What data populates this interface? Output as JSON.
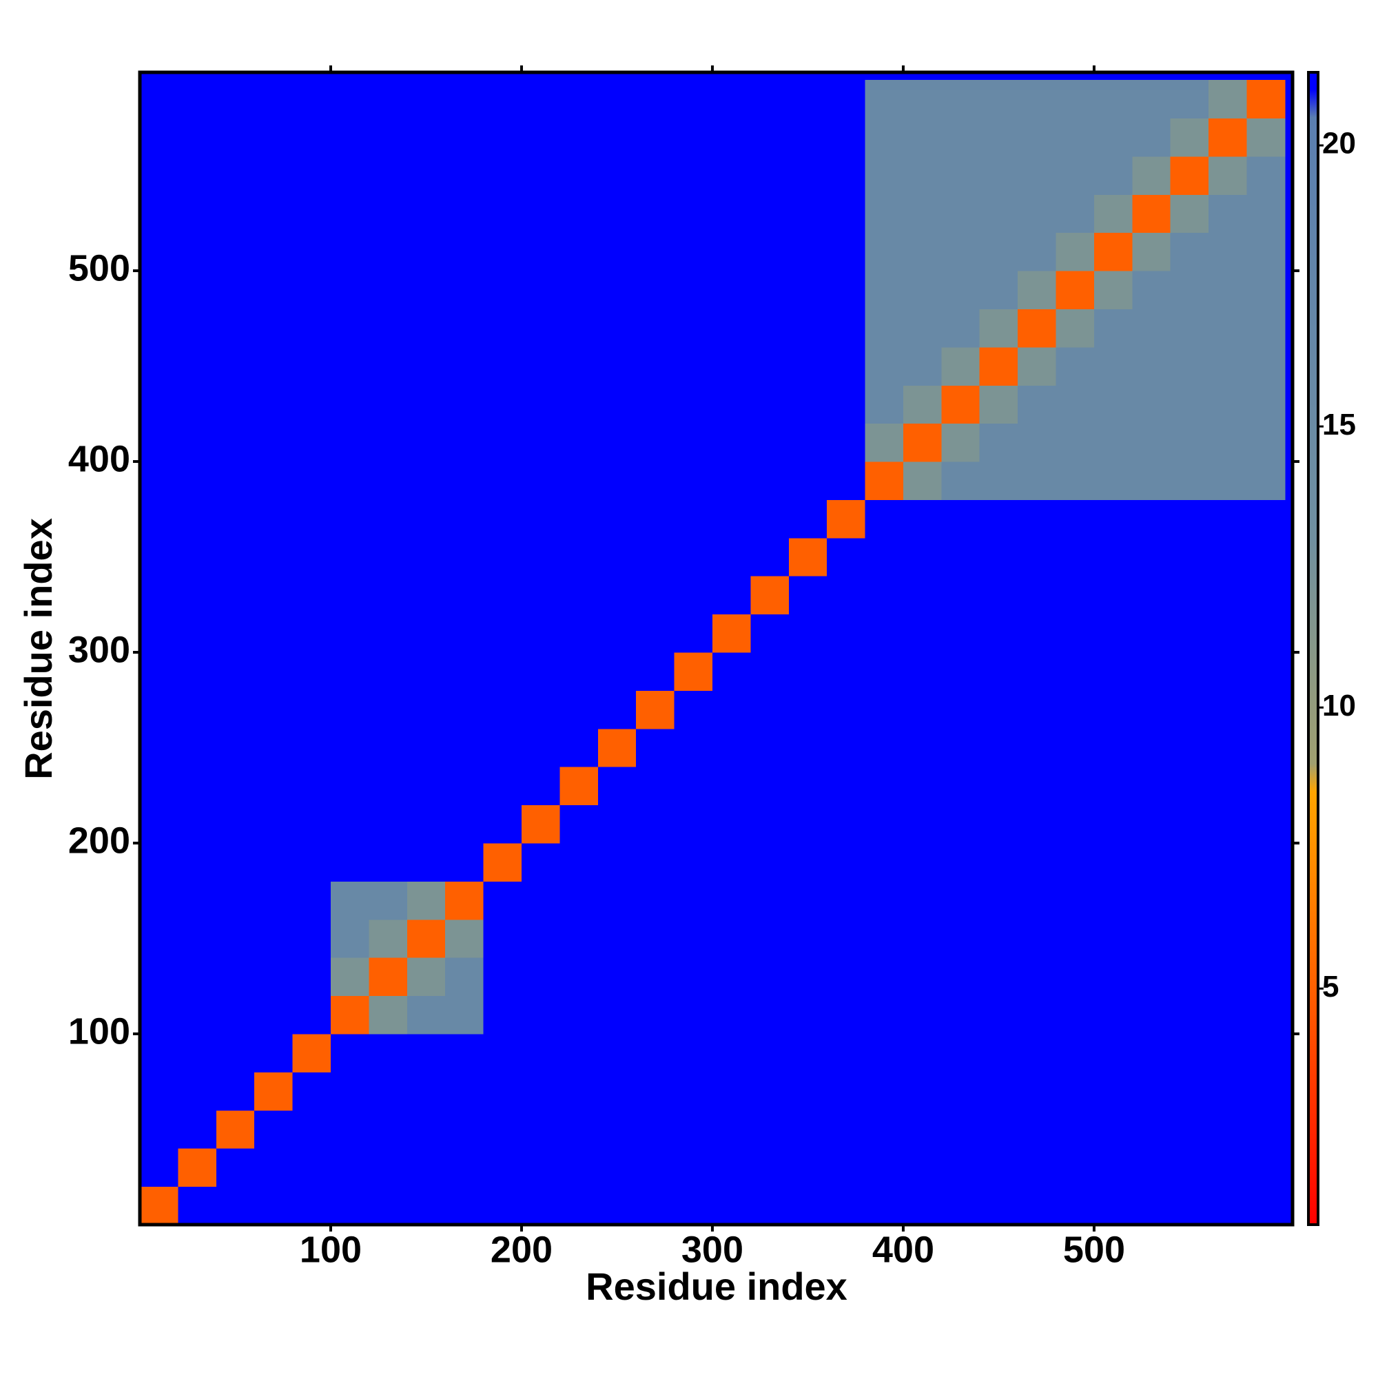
{
  "chart_data": {
    "type": "heatmap",
    "x_label": "Residue index",
    "y_label": "Residue index",
    "bins": [
      0,
      20,
      40,
      60,
      80,
      100,
      120,
      140,
      160,
      180,
      200,
      220,
      240,
      260,
      280,
      300,
      320,
      340,
      360,
      380,
      400,
      420,
      440,
      460,
      480,
      500,
      520,
      540,
      560,
      580,
      600
    ],
    "values": [
      [
        5,
        21,
        21,
        21,
        21,
        21,
        21,
        21,
        21,
        21,
        21,
        21,
        21,
        21,
        21,
        21,
        21,
        21,
        21,
        21,
        21,
        21,
        21,
        21,
        21,
        21,
        21,
        21,
        21,
        21
      ],
      [
        21,
        5,
        21,
        21,
        21,
        21,
        21,
        21,
        21,
        21,
        21,
        21,
        21,
        21,
        21,
        21,
        21,
        21,
        21,
        21,
        21,
        21,
        21,
        21,
        21,
        21,
        21,
        21,
        21,
        21
      ],
      [
        21,
        21,
        5,
        21,
        21,
        21,
        21,
        21,
        21,
        21,
        21,
        21,
        21,
        21,
        21,
        21,
        21,
        21,
        21,
        21,
        21,
        21,
        21,
        21,
        21,
        21,
        21,
        21,
        21,
        21
      ],
      [
        21,
        21,
        21,
        5,
        21,
        21,
        21,
        21,
        21,
        21,
        21,
        21,
        21,
        21,
        21,
        21,
        21,
        21,
        21,
        21,
        21,
        21,
        21,
        21,
        21,
        21,
        21,
        21,
        21,
        21
      ],
      [
        21,
        21,
        21,
        21,
        5,
        21,
        21,
        21,
        21,
        21,
        21,
        21,
        21,
        21,
        21,
        21,
        21,
        21,
        21,
        21,
        21,
        21,
        21,
        21,
        21,
        21,
        21,
        21,
        21,
        21
      ],
      [
        21,
        21,
        21,
        21,
        21,
        5,
        12,
        16,
        16,
        21,
        21,
        21,
        21,
        21,
        21,
        21,
        21,
        21,
        21,
        21,
        21,
        21,
        21,
        21,
        21,
        21,
        21,
        21,
        21,
        21
      ],
      [
        21,
        21,
        21,
        21,
        21,
        12,
        5,
        12,
        16,
        21,
        21,
        21,
        21,
        21,
        21,
        21,
        21,
        21,
        21,
        21,
        21,
        21,
        21,
        21,
        21,
        21,
        21,
        21,
        21,
        21
      ],
      [
        21,
        21,
        21,
        21,
        21,
        16,
        12,
        5,
        12,
        21,
        21,
        21,
        21,
        21,
        21,
        21,
        21,
        21,
        21,
        21,
        21,
        21,
        21,
        21,
        21,
        21,
        21,
        21,
        21,
        21
      ],
      [
        21,
        21,
        21,
        21,
        21,
        16,
        16,
        12,
        5,
        21,
        21,
        21,
        21,
        21,
        21,
        21,
        21,
        21,
        21,
        21,
        21,
        21,
        21,
        21,
        21,
        21,
        21,
        21,
        21,
        21
      ],
      [
        21,
        21,
        21,
        21,
        21,
        21,
        21,
        21,
        21,
        5,
        21,
        21,
        21,
        21,
        21,
        21,
        21,
        21,
        21,
        21,
        21,
        21,
        21,
        21,
        21,
        21,
        21,
        21,
        21,
        21
      ],
      [
        21,
        21,
        21,
        21,
        21,
        21,
        21,
        21,
        21,
        21,
        5,
        21,
        21,
        21,
        21,
        21,
        21,
        21,
        21,
        21,
        21,
        21,
        21,
        21,
        21,
        21,
        21,
        21,
        21,
        21
      ],
      [
        21,
        21,
        21,
        21,
        21,
        21,
        21,
        21,
        21,
        21,
        21,
        5,
        21,
        21,
        21,
        21,
        21,
        21,
        21,
        21,
        21,
        21,
        21,
        21,
        21,
        21,
        21,
        21,
        21,
        21
      ],
      [
        21,
        21,
        21,
        21,
        21,
        21,
        21,
        21,
        21,
        21,
        21,
        21,
        5,
        21,
        21,
        21,
        21,
        21,
        21,
        21,
        21,
        21,
        21,
        21,
        21,
        21,
        21,
        21,
        21,
        21
      ],
      [
        21,
        21,
        21,
        21,
        21,
        21,
        21,
        21,
        21,
        21,
        21,
        21,
        21,
        5,
        21,
        21,
        21,
        21,
        21,
        21,
        21,
        21,
        21,
        21,
        21,
        21,
        21,
        21,
        21,
        21
      ],
      [
        21,
        21,
        21,
        21,
        21,
        21,
        21,
        21,
        21,
        21,
        21,
        21,
        21,
        21,
        5,
        21,
        21,
        21,
        21,
        21,
        21,
        21,
        21,
        21,
        21,
        21,
        21,
        21,
        21,
        21
      ],
      [
        21,
        21,
        21,
        21,
        21,
        21,
        21,
        21,
        21,
        21,
        21,
        21,
        21,
        21,
        21,
        5,
        21,
        21,
        21,
        21,
        21,
        21,
        21,
        21,
        21,
        21,
        21,
        21,
        21,
        21
      ],
      [
        21,
        21,
        21,
        21,
        21,
        21,
        21,
        21,
        21,
        21,
        21,
        21,
        21,
        21,
        21,
        21,
        5,
        21,
        21,
        21,
        21,
        21,
        21,
        21,
        21,
        21,
        21,
        21,
        21,
        21
      ],
      [
        21,
        21,
        21,
        21,
        21,
        21,
        21,
        21,
        21,
        21,
        21,
        21,
        21,
        21,
        21,
        21,
        21,
        5,
        21,
        21,
        21,
        21,
        21,
        21,
        21,
        21,
        21,
        21,
        21,
        21
      ],
      [
        21,
        21,
        21,
        21,
        21,
        21,
        21,
        21,
        21,
        21,
        21,
        21,
        21,
        21,
        21,
        21,
        21,
        21,
        5,
        21,
        21,
        21,
        21,
        21,
        21,
        21,
        21,
        21,
        21,
        21
      ],
      [
        21,
        21,
        21,
        21,
        21,
        21,
        21,
        21,
        21,
        21,
        21,
        21,
        21,
        21,
        21,
        21,
        21,
        21,
        21,
        5,
        12,
        16,
        16,
        16,
        16,
        16,
        16,
        16,
        16,
        16
      ],
      [
        21,
        21,
        21,
        21,
        21,
        21,
        21,
        21,
        21,
        21,
        21,
        21,
        21,
        21,
        21,
        21,
        21,
        21,
        21,
        12,
        5,
        12,
        16,
        16,
        16,
        16,
        16,
        16,
        16,
        16
      ],
      [
        21,
        21,
        21,
        21,
        21,
        21,
        21,
        21,
        21,
        21,
        21,
        21,
        21,
        21,
        21,
        21,
        21,
        21,
        21,
        16,
        12,
        5,
        12,
        16,
        16,
        16,
        16,
        16,
        16,
        16
      ],
      [
        21,
        21,
        21,
        21,
        21,
        21,
        21,
        21,
        21,
        21,
        21,
        21,
        21,
        21,
        21,
        21,
        21,
        21,
        21,
        16,
        16,
        12,
        5,
        12,
        16,
        16,
        16,
        16,
        16,
        16
      ],
      [
        21,
        21,
        21,
        21,
        21,
        21,
        21,
        21,
        21,
        21,
        21,
        21,
        21,
        21,
        21,
        21,
        21,
        21,
        21,
        16,
        16,
        16,
        12,
        5,
        12,
        16,
        16,
        16,
        16,
        16
      ],
      [
        21,
        21,
        21,
        21,
        21,
        21,
        21,
        21,
        21,
        21,
        21,
        21,
        21,
        21,
        21,
        21,
        21,
        21,
        21,
        16,
        16,
        16,
        16,
        12,
        5,
        12,
        16,
        16,
        16,
        16
      ],
      [
        21,
        21,
        21,
        21,
        21,
        21,
        21,
        21,
        21,
        21,
        21,
        21,
        21,
        21,
        21,
        21,
        21,
        21,
        21,
        16,
        16,
        16,
        16,
        16,
        12,
        5,
        12,
        16,
        16,
        16
      ],
      [
        21,
        21,
        21,
        21,
        21,
        21,
        21,
        21,
        21,
        21,
        21,
        21,
        21,
        21,
        21,
        21,
        21,
        21,
        21,
        16,
        16,
        16,
        16,
        16,
        16,
        12,
        5,
        12,
        16,
        16
      ],
      [
        21,
        21,
        21,
        21,
        21,
        21,
        21,
        21,
        21,
        21,
        21,
        21,
        21,
        21,
        21,
        21,
        21,
        21,
        21,
        16,
        16,
        16,
        16,
        16,
        16,
        16,
        12,
        5,
        12,
        16
      ],
      [
        21,
        21,
        21,
        21,
        21,
        21,
        21,
        21,
        21,
        21,
        21,
        21,
        21,
        21,
        21,
        21,
        21,
        21,
        21,
        16,
        16,
        16,
        16,
        16,
        16,
        16,
        16,
        12,
        5,
        12
      ],
      [
        21,
        21,
        21,
        21,
        21,
        21,
        21,
        21,
        21,
        21,
        21,
        21,
        21,
        21,
        21,
        21,
        21,
        21,
        21,
        16,
        16,
        16,
        16,
        16,
        16,
        16,
        16,
        16,
        12,
        5
      ]
    ],
    "xlim": [
      0,
      604
    ],
    "ylim": [
      0,
      604
    ],
    "xticks": [
      100,
      200,
      300,
      400,
      500
    ],
    "yticks": [
      100,
      200,
      300,
      400,
      500
    ],
    "zlim": [
      0.8,
      21.3
    ],
    "zticks": [
      5,
      10,
      15,
      20
    ],
    "colorscale": [
      [
        0.8,
        "#ff0000"
      ],
      [
        5,
        "#ff6000"
      ],
      [
        8.5,
        "#ffa500"
      ],
      [
        9,
        "#a0a070"
      ],
      [
        13,
        "#7090a0"
      ],
      [
        20.5,
        "#5b7fb0"
      ],
      [
        21,
        "#0000ff"
      ]
    ]
  }
}
